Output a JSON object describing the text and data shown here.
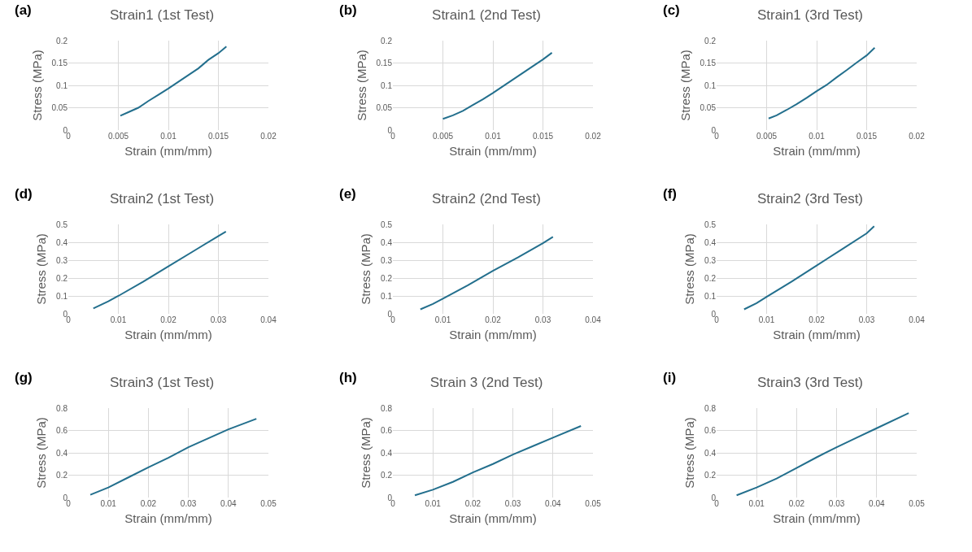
{
  "chart_data": [
    {
      "type": "line",
      "title": "Strain1 (1st Test)",
      "xlabel": "Strain (mm/mm)",
      "ylabel": "Stress (MPa)",
      "annotations": [
        "(a)"
      ],
      "grid": true,
      "color": "#236f8d",
      "xlim": [
        0,
        0.02
      ],
      "xticks": [
        0,
        0.005,
        0.01,
        0.015,
        0.02
      ],
      "ylim": [
        0,
        0.2
      ],
      "yticks": [
        0,
        0.05,
        0.1,
        0.15,
        0.2
      ],
      "x": [
        0.0052,
        0.006,
        0.007,
        0.008,
        0.009,
        0.01,
        0.011,
        0.012,
        0.013,
        0.014,
        0.015,
        0.0158
      ],
      "values": [
        0.032,
        0.04,
        0.05,
        0.065,
        0.079,
        0.093,
        0.108,
        0.123,
        0.138,
        0.157,
        0.172,
        0.187
      ]
    },
    {
      "type": "line",
      "title": "Strain1 (2nd Test)",
      "xlabel": "Strain (mm/mm)",
      "ylabel": "Stress (MPa)",
      "annotations": [
        "(b)"
      ],
      "grid": true,
      "color": "#236f8d",
      "xlim": [
        0,
        0.02
      ],
      "xticks": [
        0,
        0.005,
        0.01,
        0.015,
        0.02
      ],
      "ylim": [
        0,
        0.2
      ],
      "yticks": [
        0,
        0.05,
        0.1,
        0.15,
        0.2
      ],
      "x": [
        0.005,
        0.006,
        0.007,
        0.008,
        0.009,
        0.01,
        0.011,
        0.012,
        0.013,
        0.014,
        0.015,
        0.0159
      ],
      "values": [
        0.025,
        0.033,
        0.043,
        0.056,
        0.069,
        0.083,
        0.098,
        0.113,
        0.128,
        0.143,
        0.158,
        0.173
      ]
    },
    {
      "type": "line",
      "title": "Strain1 (3rd Test)",
      "xlabel": "Strain (mm/mm)",
      "ylabel": "Stress (MPa)",
      "annotations": [
        "(c)"
      ],
      "grid": true,
      "color": "#236f8d",
      "xlim": [
        0,
        0.02
      ],
      "xticks": [
        0,
        0.005,
        0.01,
        0.015,
        0.02
      ],
      "ylim": [
        0,
        0.2
      ],
      "yticks": [
        0,
        0.05,
        0.1,
        0.15,
        0.2
      ],
      "x": [
        0.0052,
        0.006,
        0.007,
        0.008,
        0.009,
        0.01,
        0.011,
        0.012,
        0.013,
        0.014,
        0.015,
        0.0158
      ],
      "values": [
        0.026,
        0.033,
        0.045,
        0.058,
        0.072,
        0.087,
        0.101,
        0.118,
        0.134,
        0.151,
        0.167,
        0.184
      ]
    },
    {
      "type": "line",
      "title": "Strain2 (1st Test)",
      "xlabel": "Strain (mm/mm)",
      "ylabel": "Stress (MPa)",
      "annotations": [
        "(d)"
      ],
      "grid": true,
      "color": "#236f8d",
      "xlim": [
        0,
        0.04
      ],
      "xticks": [
        0,
        0.01,
        0.02,
        0.03,
        0.04
      ],
      "ylim": [
        0,
        0.5
      ],
      "yticks": [
        0,
        0.1,
        0.2,
        0.3,
        0.4,
        0.5
      ],
      "x": [
        0.005,
        0.008,
        0.01,
        0.015,
        0.02,
        0.025,
        0.03,
        0.0315
      ],
      "values": [
        0.03,
        0.07,
        0.1,
        0.18,
        0.265,
        0.35,
        0.435,
        0.46
      ]
    },
    {
      "type": "line",
      "title": "Strain2 (2nd Test)",
      "xlabel": "Strain (mm/mm)",
      "ylabel": "Stress (MPa)",
      "annotations": [
        "(e)"
      ],
      "grid": true,
      "color": "#236f8d",
      "xlim": [
        0,
        0.04
      ],
      "xticks": [
        0,
        0.01,
        0.02,
        0.03,
        0.04
      ],
      "ylim": [
        0,
        0.5
      ],
      "yticks": [
        0,
        0.1,
        0.2,
        0.3,
        0.4,
        0.5
      ],
      "x": [
        0.0055,
        0.008,
        0.01,
        0.015,
        0.02,
        0.025,
        0.03,
        0.032
      ],
      "values": [
        0.025,
        0.055,
        0.085,
        0.16,
        0.24,
        0.315,
        0.395,
        0.43
      ]
    },
    {
      "type": "line",
      "title": "Strain2 (3rd Test)",
      "xlabel": "Strain (mm/mm)",
      "ylabel": "Stress (MPa)",
      "annotations": [
        "(f)"
      ],
      "grid": true,
      "color": "#236f8d",
      "xlim": [
        0,
        0.04
      ],
      "xticks": [
        0,
        0.01,
        0.02,
        0.03,
        0.04
      ],
      "ylim": [
        0,
        0.5
      ],
      "yticks": [
        0,
        0.1,
        0.2,
        0.3,
        0.4,
        0.5
      ],
      "x": [
        0.0055,
        0.008,
        0.01,
        0.015,
        0.02,
        0.025,
        0.03,
        0.0315
      ],
      "values": [
        0.025,
        0.06,
        0.095,
        0.18,
        0.27,
        0.36,
        0.45,
        0.49
      ]
    },
    {
      "type": "line",
      "title": "Strain3 (1st Test)",
      "xlabel": "Strain (mm/mm)",
      "ylabel": "Stress (MPa)",
      "annotations": [
        "(g)"
      ],
      "grid": true,
      "color": "#236f8d",
      "xlim": [
        0,
        0.05
      ],
      "xticks": [
        0,
        0.01,
        0.02,
        0.03,
        0.04,
        0.05
      ],
      "ylim": [
        0,
        0.8
      ],
      "yticks": [
        0,
        0.2,
        0.4,
        0.6,
        0.8
      ],
      "x": [
        0.0055,
        0.01,
        0.015,
        0.02,
        0.025,
        0.03,
        0.035,
        0.04,
        0.047
      ],
      "values": [
        0.025,
        0.09,
        0.18,
        0.27,
        0.355,
        0.45,
        0.53,
        0.61,
        0.705
      ]
    },
    {
      "type": "line",
      "title": "Strain 3 (2nd Test)",
      "xlabel": "Strain (mm/mm)",
      "ylabel": "Stress (MPa)",
      "annotations": [
        "(h)"
      ],
      "grid": true,
      "color": "#236f8d",
      "xlim": [
        0,
        0.05
      ],
      "xticks": [
        0,
        0.01,
        0.02,
        0.03,
        0.04,
        0.05
      ],
      "ylim": [
        0,
        0.8
      ],
      "yticks": [
        0,
        0.2,
        0.4,
        0.6,
        0.8
      ],
      "x": [
        0.0055,
        0.01,
        0.015,
        0.02,
        0.025,
        0.03,
        0.035,
        0.04,
        0.047
      ],
      "values": [
        0.02,
        0.07,
        0.14,
        0.225,
        0.3,
        0.385,
        0.46,
        0.535,
        0.64
      ]
    },
    {
      "type": "line",
      "title": "Strain3 (3rd Test)",
      "xlabel": "Strain (mm/mm)",
      "ylabel": "Stress (MPa)",
      "annotations": [
        "(i)"
      ],
      "grid": true,
      "color": "#236f8d",
      "xlim": [
        0,
        0.05
      ],
      "xticks": [
        0,
        0.01,
        0.02,
        0.03,
        0.04,
        0.05
      ],
      "ylim": [
        0,
        0.8
      ],
      "yticks": [
        0,
        0.2,
        0.4,
        0.6,
        0.8
      ],
      "x": [
        0.005,
        0.01,
        0.015,
        0.02,
        0.025,
        0.03,
        0.035,
        0.04,
        0.048
      ],
      "values": [
        0.02,
        0.09,
        0.17,
        0.265,
        0.36,
        0.45,
        0.535,
        0.62,
        0.755
      ]
    }
  ]
}
